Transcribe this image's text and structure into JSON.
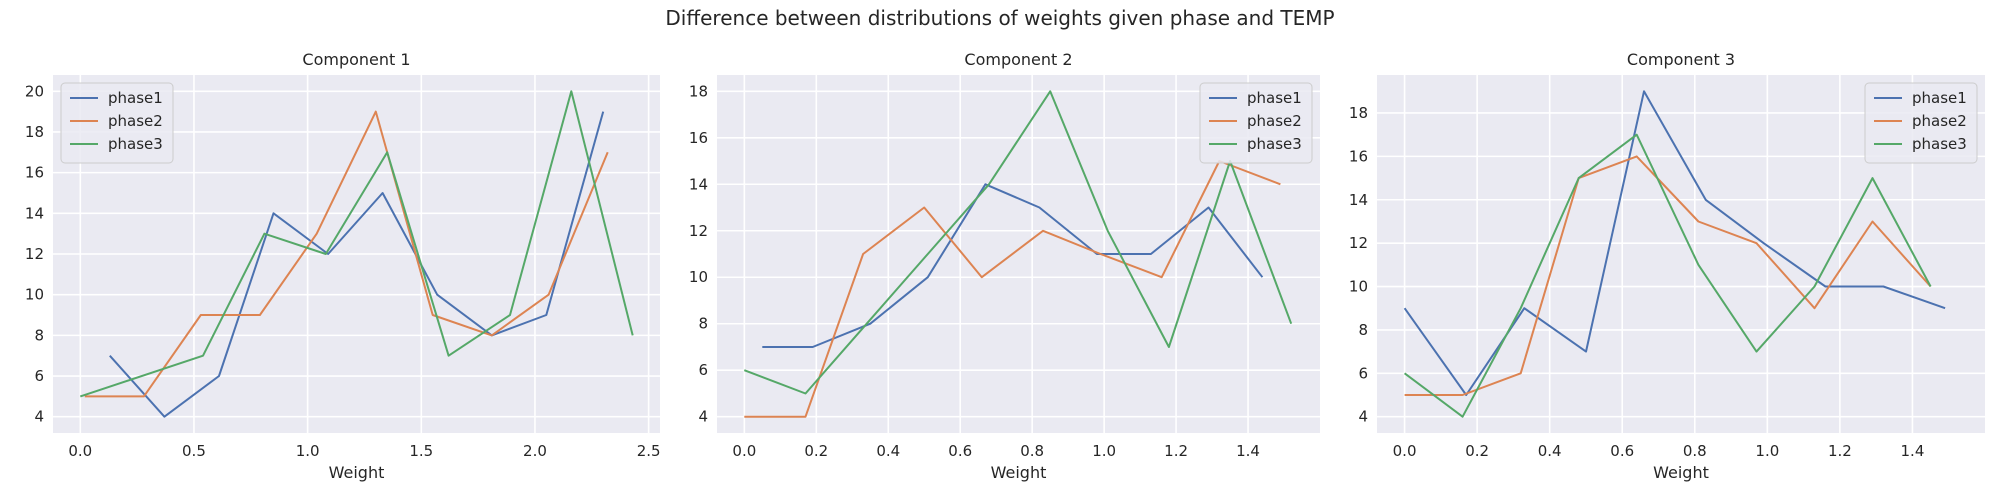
{
  "suptitle": "Difference between distributions of weights given phase and TEMP",
  "colors": {
    "background": "#EAEAF2",
    "grid": "#FFFFFF",
    "text": "#262626",
    "phase1": "#4C72B0",
    "phase2": "#DD8452",
    "phase3": "#55A868"
  },
  "chart_data": [
    {
      "type": "line",
      "title": "Component 1",
      "xlabel": "Weight",
      "ylabel": "",
      "xlim": [
        -0.12,
        2.55
      ],
      "ylim": [
        3.2,
        20.8
      ],
      "xticks": [
        0.0,
        0.5,
        1.0,
        1.5,
        2.0,
        2.5
      ],
      "xtick_labels": [
        "0.0",
        "0.5",
        "1.0",
        "1.5",
        "2.0",
        "2.5"
      ],
      "yticks": [
        4,
        6,
        8,
        10,
        12,
        14,
        16,
        18,
        20
      ],
      "ytick_labels": [
        "4",
        "6",
        "8",
        "10",
        "12",
        "14",
        "16",
        "18",
        "20"
      ],
      "grid": true,
      "legend": "upper-left",
      "series": [
        {
          "name": "phase1",
          "x": [
            0.13,
            0.37,
            0.61,
            0.85,
            1.09,
            1.33,
            1.57,
            1.81,
            2.05,
            2.3
          ],
          "y": [
            7,
            4,
            6,
            14,
            12,
            15,
            10,
            8,
            9,
            19
          ]
        },
        {
          "name": "phase2",
          "x": [
            0.02,
            0.28,
            0.53,
            0.79,
            1.04,
            1.3,
            1.55,
            1.81,
            2.06,
            2.32
          ],
          "y": [
            5,
            5,
            9,
            9,
            13,
            19,
            9,
            8,
            10,
            17
          ]
        },
        {
          "name": "phase3",
          "x": [
            0.0,
            0.54,
            0.81,
            1.08,
            1.35,
            1.62,
            1.89,
            2.16,
            2.43
          ],
          "y": [
            5,
            7,
            13,
            12,
            17,
            7,
            9,
            20,
            8
          ]
        }
      ]
    },
    {
      "type": "line",
      "title": "Component 2",
      "xlabel": "Weight",
      "ylabel": "",
      "xlim": [
        -0.076,
        1.6
      ],
      "ylim": [
        3.3,
        18.7
      ],
      "xticks": [
        0.0,
        0.2,
        0.4,
        0.6,
        0.8,
        1.0,
        1.2,
        1.4
      ],
      "xtick_labels": [
        "0.0",
        "0.2",
        "0.4",
        "0.6",
        "0.8",
        "1.0",
        "1.2",
        "1.4"
      ],
      "yticks": [
        4,
        6,
        8,
        10,
        12,
        14,
        16,
        18
      ],
      "ytick_labels": [
        "4",
        "6",
        "8",
        "10",
        "12",
        "14",
        "16",
        "18"
      ],
      "grid": true,
      "legend": "upper-right",
      "series": [
        {
          "name": "phase1",
          "x": [
            0.05,
            0.19,
            0.35,
            0.51,
            0.67,
            0.82,
            0.98,
            1.13,
            1.29,
            1.44
          ],
          "y": [
            7,
            7,
            8,
            10,
            14,
            13,
            11,
            11,
            13,
            10
          ]
        },
        {
          "name": "phase2",
          "x": [
            0.0,
            0.17,
            0.33,
            0.5,
            0.66,
            0.83,
            0.99,
            1.16,
            1.32,
            1.49
          ],
          "y": [
            4,
            4,
            11,
            13,
            10,
            12,
            11,
            10,
            15,
            14
          ]
        },
        {
          "name": "phase3",
          "x": [
            0.0,
            0.17,
            0.34,
            0.51,
            0.68,
            0.85,
            1.01,
            1.18,
            1.35,
            1.52
          ],
          "y": [
            6,
            5,
            8,
            11,
            14,
            18,
            12,
            7,
            15,
            8
          ]
        }
      ]
    },
    {
      "type": "line",
      "title": "Component 3",
      "xlabel": "Weight",
      "ylabel": "",
      "xlim": [
        -0.076,
        1.6
      ],
      "ylim": [
        3.25,
        19.75
      ],
      "xticks": [
        0.0,
        0.2,
        0.4,
        0.6,
        0.8,
        1.0,
        1.2,
        1.4
      ],
      "xtick_labels": [
        "0.0",
        "0.2",
        "0.4",
        "0.6",
        "0.8",
        "1.0",
        "1.2",
        "1.4"
      ],
      "yticks": [
        4,
        6,
        8,
        10,
        12,
        14,
        16,
        18
      ],
      "ytick_labels": [
        "4",
        "6",
        "8",
        "10",
        "12",
        "14",
        "16",
        "18"
      ],
      "grid": true,
      "legend": "upper-right",
      "series": [
        {
          "name": "phase1",
          "x": [
            0.0,
            0.17,
            0.33,
            0.5,
            0.66,
            0.83,
            0.99,
            1.16,
            1.32,
            1.49
          ],
          "y": [
            9,
            5,
            9,
            7,
            19,
            14,
            12,
            10,
            10,
            9
          ]
        },
        {
          "name": "phase2",
          "x": [
            0.0,
            0.16,
            0.32,
            0.48,
            0.64,
            0.81,
            0.97,
            1.13,
            1.29,
            1.45
          ],
          "y": [
            5,
            5,
            6,
            15,
            16,
            13,
            12,
            9,
            13,
            10
          ]
        },
        {
          "name": "phase3",
          "x": [
            0.0,
            0.16,
            0.32,
            0.48,
            0.64,
            0.81,
            0.97,
            1.13,
            1.29,
            1.45
          ],
          "y": [
            6,
            4,
            9,
            15,
            17,
            11,
            7,
            10,
            15,
            10
          ]
        }
      ]
    }
  ]
}
